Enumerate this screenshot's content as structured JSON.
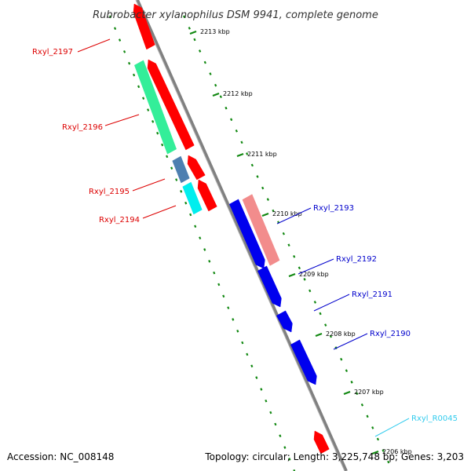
{
  "title": "Rubrobacter xylanophilus DSM 9941, complete genome",
  "footer": {
    "accession": "Accession: NC_008148",
    "summary": "Topology: circular; Length: 3,225,748 bp; Genes: 3,203"
  },
  "colors": {
    "forward_cds": "#ff0000",
    "forward_cds_faded": "#f28c8c",
    "reverse_cds": "#0000ee",
    "rna": "#33ccee",
    "label_forward": "#dd0000",
    "label_reverse": "#0000cc",
    "label_rna": "#33ccee",
    "cog_green": "#33ee99",
    "cog_steel": "#4d7fb0",
    "cog_cyan": "#00eeee",
    "backbone": "#808080",
    "tick_dots": "#118811"
  },
  "ruler": [
    "2213 kbp",
    "2212 kbp",
    "2211 kbp",
    "2210 kbp",
    "2209 kbp",
    "2208 kbp",
    "2207 kbp",
    "2206 kbp"
  ],
  "genes": [
    {
      "label": "Rxyl_2197",
      "strand": "forward"
    },
    {
      "label": "Rxyl_2196",
      "strand": "forward"
    },
    {
      "label": "Rxyl_2195",
      "strand": "forward"
    },
    {
      "label": "Rxyl_2194",
      "strand": "forward"
    },
    {
      "label": "Rxyl_2193",
      "strand": "reverse"
    },
    {
      "label": "Rxyl_2192",
      "strand": "reverse"
    },
    {
      "label": "Rxyl_2191",
      "strand": "reverse"
    },
    {
      "label": "Rxyl_2190",
      "strand": "reverse"
    },
    {
      "label": "Rxyl_R0045",
      "strand": "rna"
    }
  ]
}
